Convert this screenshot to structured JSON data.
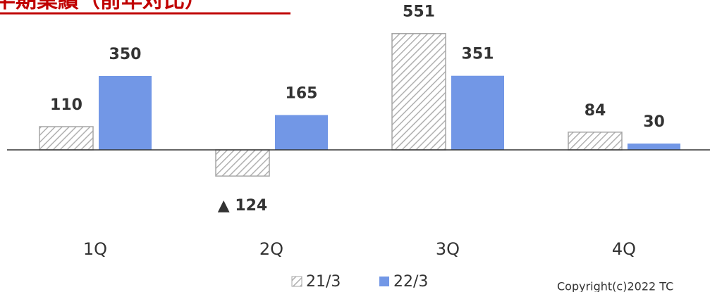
{
  "chart_data": {
    "type": "bar",
    "title": "半期業績（前年対比）",
    "categories": [
      "1Q",
      "2Q",
      "3Q",
      "4Q"
    ],
    "series": [
      {
        "name": "21/3",
        "color": "#a6a6a6",
        "pattern": "hatch",
        "values": [
          110,
          -124,
          551,
          84
        ],
        "value_labels": [
          "110",
          "▲ 124",
          "551",
          "84"
        ]
      },
      {
        "name": "22/3",
        "color": "#7297e6",
        "values": [
          350,
          165,
          351,
          30
        ]
      }
    ],
    "ylim": [
      -200,
      600
    ],
    "footer": "Copyright(c)2022  TC"
  }
}
